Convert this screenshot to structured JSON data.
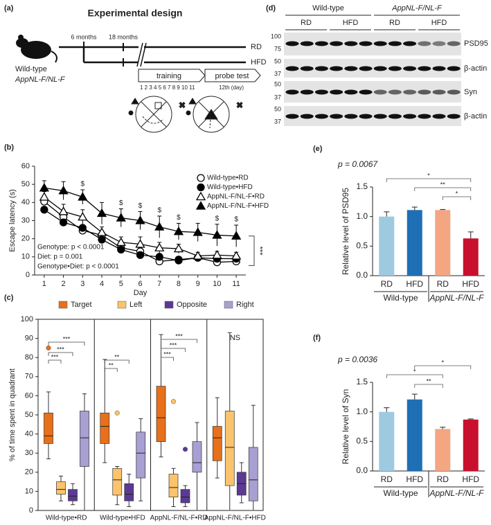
{
  "panels": [
    "(a)",
    "(b)",
    "(c)",
    "(d)",
    "(e)",
    "(f)"
  ],
  "design": {
    "title": "Experimental design",
    "genotypes": [
      "Wild-type",
      "AppNL-F/NL-F"
    ],
    "timepoints": [
      "6 months",
      "18 months"
    ],
    "diets": [
      "RD",
      "HFD"
    ],
    "phases": [
      "training",
      "probe test"
    ],
    "days": "1 2 3 4 5 6 7 8 9 10 11",
    "probe_day": "12th (day)"
  },
  "blot": {
    "groups": [
      "Wild-type",
      "AppNL-F/NL-F"
    ],
    "diets": [
      "RD",
      "HFD",
      "RD",
      "HFD"
    ],
    "markers": [
      100,
      75,
      50,
      37,
      50,
      37,
      50,
      37
    ],
    "proteins": [
      "PSD95",
      "β-actin",
      "Syn",
      "β-actin"
    ]
  },
  "chart_data": [
    {
      "type": "line",
      "ylabel": "Escape latency (s)",
      "xlabel": "Day",
      "x": [
        1,
        2,
        3,
        4,
        5,
        6,
        7,
        8,
        9,
        10,
        11
      ],
      "xlim": [
        0.5,
        11.5
      ],
      "xticks": [
        1,
        2,
        3,
        4,
        5,
        6,
        7,
        8,
        9,
        10,
        11
      ],
      "ylim": [
        0,
        60
      ],
      "yticks": [
        0,
        10,
        20,
        30,
        40,
        50,
        60
      ],
      "series": [
        {
          "name": "Wild-type•RD",
          "color": "#000000",
          "marker": "circle",
          "filled": false,
          "values": [
            40.5,
            32,
            24.5,
            22,
            15,
            13,
            7.5,
            8.5,
            9.5,
            7,
            7.5
          ],
          "errors": [
            2,
            2,
            1.5,
            2,
            3,
            2,
            1,
            1,
            1,
            1,
            1.5
          ]
        },
        {
          "name": "Wild-type•HFD",
          "color": "#000000",
          "marker": "circle",
          "filled": true,
          "values": [
            36,
            29,
            26,
            19.5,
            14,
            11,
            10,
            8,
            9.5,
            9,
            9
          ],
          "errors": [
            1.5,
            1.5,
            1.5,
            1.5,
            1.5,
            1,
            1,
            1,
            1,
            1,
            1
          ]
        },
        {
          "name": "AppNL-F/NL-F•RD",
          "color": "#000000",
          "marker": "triangle",
          "filled": false,
          "values": [
            43,
            35,
            32,
            23.5,
            18,
            17,
            15,
            14.5,
            10.5,
            11,
            10.5
          ],
          "errors": [
            3,
            4,
            4,
            3,
            3,
            4,
            3,
            2.5,
            2,
            2,
            2
          ]
        },
        {
          "name": "AppNL-F/NL-F•HFD",
          "color": "#000000",
          "marker": "triangle",
          "filled": true,
          "values": [
            48,
            46.5,
            43,
            34,
            31.5,
            30,
            26.5,
            24,
            23.5,
            22,
            21.5
          ],
          "errors": [
            4,
            5,
            4,
            6,
            5,
            5,
            6,
            4.5,
            5,
            6,
            6
          ]
        }
      ],
      "annotations": [
        "$",
        "$",
        "$",
        "$",
        "$",
        "$",
        "$"
      ],
      "stats": [
        "Genotype: p < 0.0001",
        "Diet: p = 0.001",
        "Genotype•Diet: p < 0.0001"
      ],
      "significance": "***"
    },
    {
      "type": "box",
      "ylabel": "% of time spent in quadrant",
      "categories": [
        "Wild-type•RD",
        "Wild-type•HFD",
        "AppNL-F/NL-F•RD",
        "AppNL-F/NL-F•HFD"
      ],
      "ylim": [
        0,
        100
      ],
      "yticks": [
        0,
        10,
        20,
        30,
        40,
        50,
        60,
        70,
        80,
        90,
        100
      ],
      "series": [
        {
          "name": "Target",
          "color": "#e8701a",
          "whisker_low": [
            27,
            25,
            28,
            17
          ],
          "q1": [
            35,
            35,
            36,
            26
          ],
          "median": [
            39,
            44,
            48.5,
            38
          ],
          "q3": [
            51,
            51,
            65,
            44
          ],
          "whisker_high": [
            62,
            79,
            92,
            59
          ],
          "outliers": [
            [
              85
            ],
            [],
            [],
            []
          ]
        },
        {
          "name": "Left",
          "color": "#fbc36b",
          "whisker_low": [
            5,
            3,
            2,
            0
          ],
          "q1": [
            8.5,
            8,
            7,
            13
          ],
          "median": [
            11,
            16,
            12,
            33
          ],
          "q3": [
            15,
            22,
            19,
            52
          ],
          "whisker_high": [
            18,
            23,
            22,
            93
          ],
          "outliers": [
            [],
            [
              51
            ],
            [
              57
            ],
            []
          ]
        },
        {
          "name": "Opposite",
          "color": "#5b3a94",
          "whisker_low": [
            3,
            2,
            2,
            4
          ],
          "q1": [
            5,
            5,
            4,
            8
          ],
          "median": [
            7.5,
            8.5,
            7,
            14
          ],
          "q3": [
            11,
            14,
            11,
            20
          ],
          "whisker_high": [
            14,
            19,
            13,
            25
          ],
          "outliers": [
            [],
            [],
            [
              32
            ],
            []
          ]
        },
        {
          "name": "Right",
          "color": "#a89fd2",
          "whisker_low": [
            0,
            5,
            0,
            0
          ],
          "q1": [
            23,
            17,
            20,
            5
          ],
          "median": [
            38,
            30,
            25,
            16
          ],
          "q3": [
            52,
            41,
            36,
            33
          ],
          "whisker_high": [
            61,
            48,
            46,
            55
          ],
          "outliers": [
            [],
            [],
            [],
            []
          ]
        }
      ],
      "annotations": [
        "***",
        "***",
        "***",
        "**",
        "**",
        "***",
        "***",
        "***",
        "NS"
      ]
    },
    {
      "type": "bar",
      "title": "p = 0.0067",
      "ylabel": "Relative level of PSD95",
      "categories": [
        "RD",
        "HFD",
        "RD",
        "HFD"
      ],
      "groups": [
        "Wild-type",
        "AppNL-F/NL-F"
      ],
      "values": [
        1.0,
        1.11,
        1.11,
        0.63
      ],
      "errors": [
        0.08,
        0.05,
        0.01,
        0.11
      ],
      "colors": [
        "#9ecae1",
        "#1f6fb5",
        "#f4a582",
        "#c8102e"
      ],
      "ylim": [
        0,
        1.5
      ],
      "yticks": [
        {
          "value": 0,
          "label": "0.0"
        },
        {
          "value": 0.5,
          "label": "0.5"
        },
        {
          "value": 1,
          "label": "1.0"
        },
        {
          "value": 1.5,
          "label": "1.5"
        }
      ],
      "annotations": [
        "*",
        "**",
        "*"
      ]
    },
    {
      "type": "bar",
      "title": "p = 0.0036",
      "ylabel": "Relative level of Syn",
      "categories": [
        "RD",
        "HFD",
        "RD",
        "HFD"
      ],
      "groups": [
        "Wild-type",
        "AppNL-F/NL-F"
      ],
      "values": [
        1.0,
        1.21,
        0.71,
        0.87
      ],
      "errors": [
        0.07,
        0.09,
        0.03,
        0.01
      ],
      "colors": [
        "#9ecae1",
        "#1f6fb5",
        "#f4a582",
        "#c8102e"
      ],
      "ylim": [
        0,
        1.5
      ],
      "yticks": [
        {
          "value": 0,
          "label": "0.0"
        },
        {
          "value": 0.5,
          "label": "0.5"
        },
        {
          "value": 1,
          "label": "1.0"
        },
        {
          "value": 1.5,
          "label": "1.5"
        }
      ],
      "annotations": [
        "*",
        "*",
        "**"
      ]
    }
  ]
}
